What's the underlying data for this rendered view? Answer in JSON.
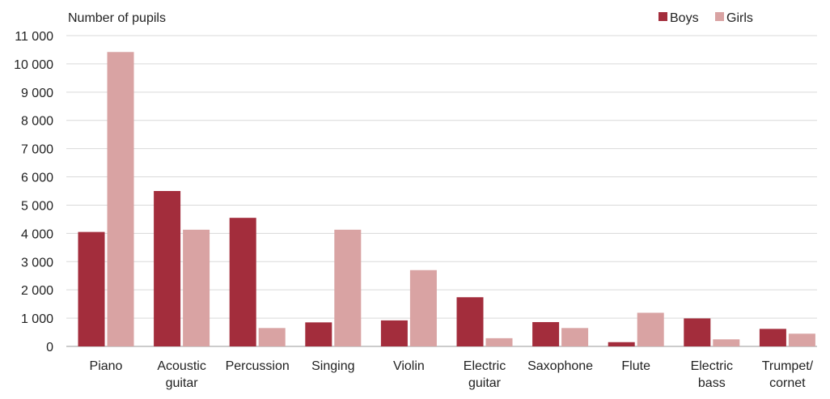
{
  "chart_data": {
    "type": "bar",
    "ylabel": "Number of pupils",
    "categories": [
      [
        "Piano"
      ],
      [
        "Acoustic",
        "guitar"
      ],
      [
        "Percussion"
      ],
      [
        "Singing"
      ],
      [
        "Violin"
      ],
      [
        "Electric",
        "guitar"
      ],
      [
        "Saxophone"
      ],
      [
        "Flute"
      ],
      [
        "Electric",
        "bass"
      ],
      [
        "Trumpet/",
        "cornet"
      ]
    ],
    "series": [
      {
        "name": "Boys",
        "color": "#a32d3c",
        "values": [
          4050,
          5500,
          4550,
          850,
          920,
          1740,
          860,
          150,
          990,
          620
        ]
      },
      {
        "name": "Girls",
        "color": "#d9a3a3",
        "values": [
          10420,
          4130,
          650,
          4130,
          2700,
          290,
          650,
          1190,
          250,
          450
        ]
      }
    ],
    "ylim": [
      0,
      11000
    ],
    "yticks": [
      "0",
      "1 000",
      "2 000",
      "3 000",
      "4 000",
      "5 000",
      "6 000",
      "7 000",
      "8 000",
      "9 000",
      "10 000",
      "11 000"
    ],
    "grid": true,
    "legend_position": "top-right"
  }
}
